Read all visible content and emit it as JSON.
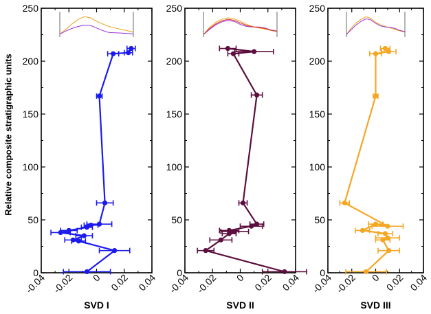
{
  "figure": {
    "ylabel": "Relative composite stratigraphic units"
  },
  "chart_data": [
    {
      "type": "scatter",
      "title": "",
      "xlabel": "SVD I",
      "ylabel": "Relative composite stratigraphic units",
      "xlim": [
        -0.04,
        0.04
      ],
      "ylim": [
        0,
        250
      ],
      "xticks": [
        "-0.04",
        "-0.02",
        "0",
        "0.02",
        "0.04"
      ],
      "yticks": [
        "0",
        "50",
        "100",
        "150",
        "200",
        "250"
      ],
      "color": "#1a1aee",
      "connected": true,
      "points": [
        {
          "x": 0.025,
          "y": 212,
          "err": 0.003
        },
        {
          "x": 0.023,
          "y": 208,
          "err": 0.003
        },
        {
          "x": 0.012,
          "y": 207,
          "err": 0.004
        },
        {
          "x": 0.002,
          "y": 167,
          "err": 0.002
        },
        {
          "x": 0.006,
          "y": 66,
          "err": 0.006
        },
        {
          "x": 0.002,
          "y": 46,
          "err": 0.009
        },
        {
          "x": -0.004,
          "y": 45,
          "err": 0.005
        },
        {
          "x": -0.007,
          "y": 43,
          "err": 0.004
        },
        {
          "x": -0.02,
          "y": 40,
          "err": 0.006
        },
        {
          "x": -0.026,
          "y": 38,
          "err": 0.007
        },
        {
          "x": -0.009,
          "y": 35,
          "err": 0.006
        },
        {
          "x": -0.017,
          "y": 31,
          "err": 0.006
        },
        {
          "x": -0.013,
          "y": 30,
          "err": 0.005
        },
        {
          "x": 0.013,
          "y": 21,
          "err": 0.011
        },
        {
          "x": -0.007,
          "y": 1,
          "err": 0.017
        }
      ],
      "inset": {
        "series": [
          {
            "color": "#f2a11a",
            "values": [
              0.12,
              0.3,
              0.52,
              0.7,
              0.8,
              0.76,
              0.62,
              0.52,
              0.42,
              0.36,
              0.3,
              0.25,
              0.2
            ]
          },
          {
            "color": "#9b30d9",
            "values": [
              0.12,
              0.24,
              0.34,
              0.42,
              0.47,
              0.46,
              0.36,
              0.26,
              0.18,
              0.17,
              0.16,
              0.14,
              0.13
            ]
          }
        ]
      }
    },
    {
      "type": "scatter",
      "title": "",
      "xlabel": "SVD II",
      "ylabel": "",
      "xlim": [
        -0.04,
        0.04
      ],
      "ylim": [
        0,
        250
      ],
      "xticks": [
        "-0.04",
        "-0.02",
        "0",
        "0.02",
        "0.04"
      ],
      "yticks": [
        "0",
        "50",
        "100",
        "150",
        "200",
        "250"
      ],
      "color": "#5c0f3e",
      "connected": true,
      "points": [
        {
          "x": -0.009,
          "y": 212,
          "err": 0.006
        },
        {
          "x": 0.01,
          "y": 209,
          "err": 0.014
        },
        {
          "x": -0.005,
          "y": 207,
          "err": 0.004
        },
        {
          "x": 0.012,
          "y": 168,
          "err": 0.004
        },
        {
          "x": 0.002,
          "y": 66,
          "err": 0.003
        },
        {
          "x": 0.012,
          "y": 46,
          "err": 0.005
        },
        {
          "x": 0.008,
          "y": 44,
          "err": 0.008
        },
        {
          "x": -0.008,
          "y": 40,
          "err": 0.007
        },
        {
          "x": -0.004,
          "y": 39,
          "err": 0.01
        },
        {
          "x": -0.008,
          "y": 37,
          "err": 0.005
        },
        {
          "x": -0.014,
          "y": 31,
          "err": 0.008
        },
        {
          "x": -0.025,
          "y": 21,
          "err": 0.006
        },
        {
          "x": 0.032,
          "y": 1,
          "err": 0.016
        }
      ],
      "inset": {
        "series": [
          {
            "color": "#f2a11a",
            "values": [
              0.1,
              0.38,
              0.58,
              0.7,
              0.76,
              0.72,
              0.62,
              0.5,
              0.42,
              0.36,
              0.32,
              0.26,
              0.22
            ]
          },
          {
            "color": "#9b30d9",
            "values": [
              0.1,
              0.3,
              0.48,
              0.6,
              0.66,
              0.62,
              0.5,
              0.42,
              0.4,
              0.4,
              0.36,
              0.28,
              0.24
            ]
          },
          {
            "color": "#d9302a",
            "values": [
              0.1,
              0.34,
              0.52,
              0.64,
              0.7,
              0.66,
              0.56,
              0.46,
              0.4,
              0.38,
              0.34,
              0.27,
              0.23
            ]
          }
        ]
      }
    },
    {
      "type": "scatter",
      "title": "",
      "xlabel": "SVD III",
      "ylabel": "",
      "xlim": [
        -0.04,
        0.04
      ],
      "ylim": [
        0,
        250
      ],
      "xticks": [
        "-0.04",
        "-0.02",
        "0",
        "0.02",
        "0.04"
      ],
      "yticks": [
        "0",
        "50",
        "100",
        "150",
        "200",
        "250"
      ],
      "color": "#f5a623",
      "connected": true,
      "points": [
        {
          "x": 0.008,
          "y": 212,
          "err": 0.004
        },
        {
          "x": 0.011,
          "y": 209,
          "err": 0.006
        },
        {
          "x": 0.0,
          "y": 207,
          "err": 0.005
        },
        {
          "x": 0.0,
          "y": 167,
          "err": 0.002
        },
        {
          "x": -0.026,
          "y": 66,
          "err": 0.004
        },
        {
          "x": 0.01,
          "y": 44,
          "err": 0.013
        },
        {
          "x": 0.0,
          "y": 46,
          "err": 0.006
        },
        {
          "x": -0.011,
          "y": 40,
          "err": 0.006
        },
        {
          "x": 0.008,
          "y": 37,
          "err": 0.006
        },
        {
          "x": 0.01,
          "y": 33,
          "err": 0.01
        },
        {
          "x": 0.006,
          "y": 31,
          "err": 0.006
        },
        {
          "x": 0.011,
          "y": 21,
          "err": 0.009
        },
        {
          "x": -0.008,
          "y": 1,
          "err": 0.017
        }
      ],
      "inset": {
        "series": [
          {
            "color": "#f2a11a",
            "values": [
              0.1,
              0.36,
              0.56,
              0.7,
              0.8,
              0.74,
              0.58,
              0.48,
              0.42,
              0.36,
              0.3,
              0.24,
              0.2
            ]
          },
          {
            "color": "#9b30d9",
            "values": [
              0.1,
              0.3,
              0.48,
              0.62,
              0.72,
              0.68,
              0.54,
              0.44,
              0.4,
              0.38,
              0.34,
              0.26,
              0.22
            ]
          }
        ]
      }
    }
  ]
}
